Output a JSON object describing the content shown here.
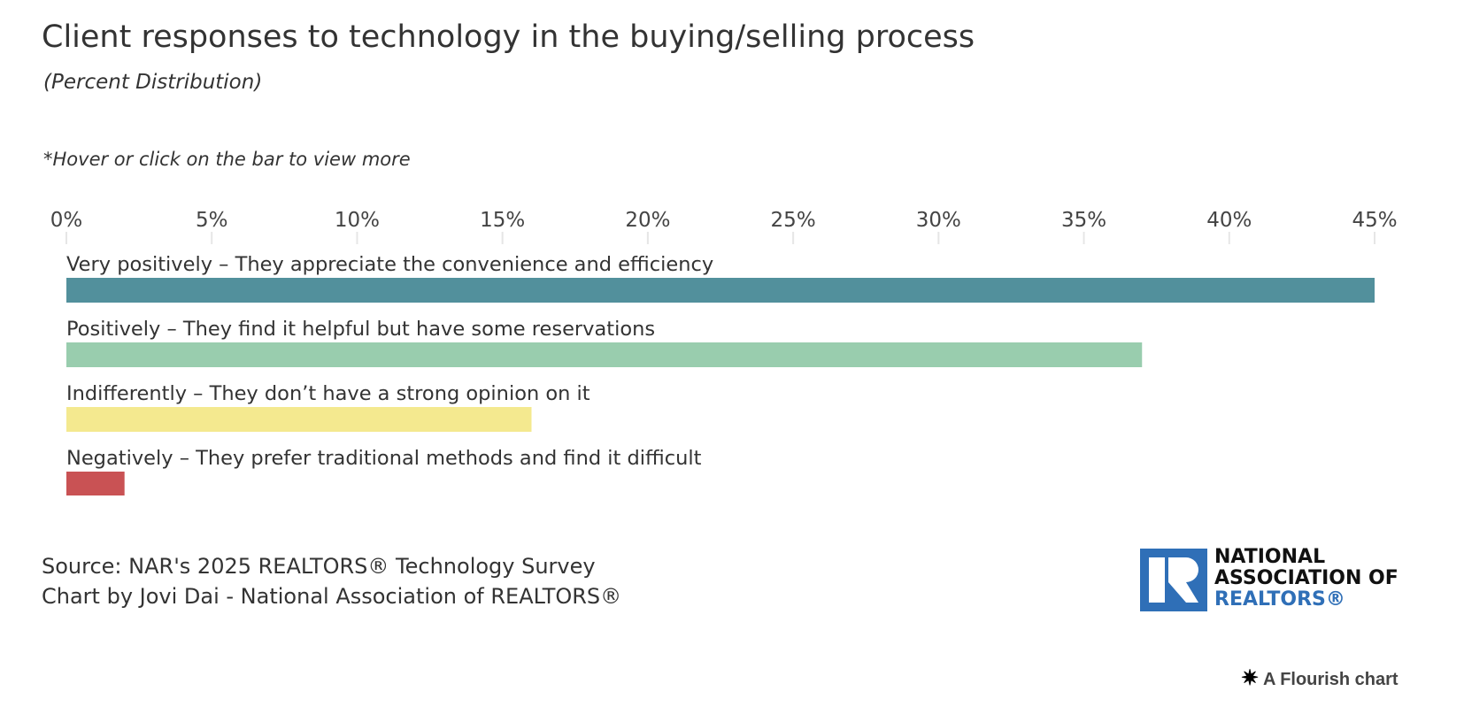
{
  "header": {
    "title": "Client responses to technology in the buying/selling process",
    "subtitle": "(Percent Distribution)",
    "note": "*Hover or click on the bar to view more"
  },
  "chart_data": {
    "type": "bar",
    "orientation": "horizontal",
    "title": "Client responses to technology in the buying/selling process",
    "subtitle": "(Percent Distribution)",
    "categories": [
      "Very positively – They appreciate the convenience and efficiency",
      "Positively – They find it helpful but have some reservations",
      "Indifferently – They don’t have a strong opinion on it",
      "Negatively – They prefer traditional methods and find it difficult"
    ],
    "values": [
      45,
      37,
      16,
      2
    ],
    "colors": [
      "#52909c",
      "#99cdae",
      "#f4e98f",
      "#c95254"
    ],
    "xlim": [
      0,
      45
    ],
    "ticks": [
      0,
      5,
      10,
      15,
      20,
      25,
      30,
      35,
      40,
      45
    ],
    "tick_labels": [
      "0%",
      "5%",
      "10%",
      "15%",
      "20%",
      "25%",
      "30%",
      "35%",
      "40%",
      "45%"
    ],
    "xlabel": "",
    "ylabel": "",
    "axis_position": "top",
    "grid": false
  },
  "footer": {
    "source": "Source: NAR's 2025 REALTORS® Technology Survey",
    "credit": "Chart by Jovi Dai - National Association of REALTORS®",
    "logo_line1": "NATIONAL",
    "logo_line2": "ASSOCIATION OF",
    "logo_line3": "REALTORS®",
    "flourish": "A Flourish chart"
  }
}
